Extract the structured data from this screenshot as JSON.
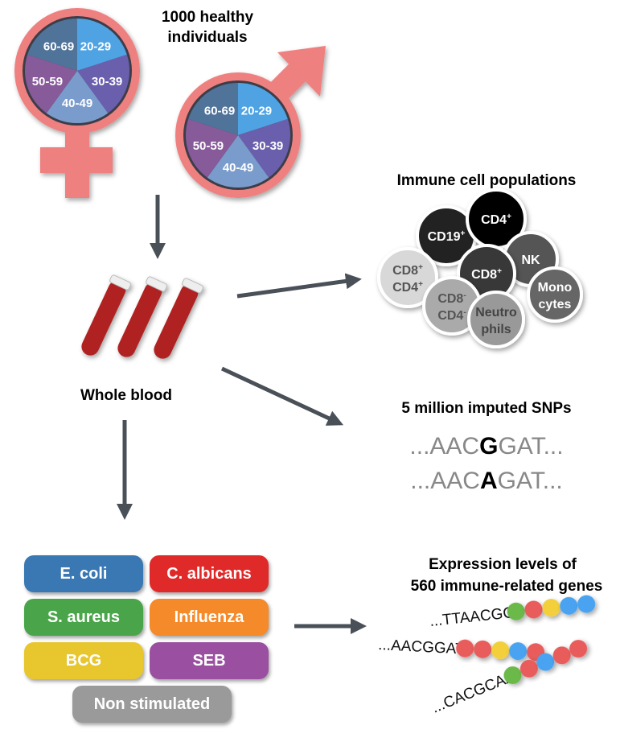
{
  "title": "1000 healthy individuals",
  "title_line1": "1000 healthy",
  "title_line2": "individuals",
  "age_groups": [
    "20-29",
    "30-39",
    "40-49",
    "50-59",
    "60-69"
  ],
  "age_colors": [
    "#4fa3e3",
    "#6a5fad",
    "#7a9ccc",
    "#875a9a",
    "#50739a"
  ],
  "symbol_color": "#ee8080",
  "whole_blood": "Whole blood",
  "immune_title": "Immune cell populations",
  "cells": [
    {
      "label": "CD19",
      "sup": "+",
      "color": "#222222",
      "text": "#ffffff"
    },
    {
      "label": "CD4",
      "sup": "+",
      "color": "#050505",
      "text": "#ffffff"
    },
    {
      "label": "NK",
      "sup": "",
      "color": "#555555",
      "text": "#ffffff"
    },
    {
      "label": "CD8",
      "sup": "+",
      "label2": "CD4",
      "sup2": "+",
      "color": "#d8d8d8",
      "text": "#555555"
    },
    {
      "label": "CD8",
      "sup": "+",
      "color": "#383838",
      "text": "#ffffff"
    },
    {
      "label": "CD8",
      "sup": "-",
      "label2": "CD4",
      "sup2": "-",
      "color": "#aaaaaa",
      "text": "#555555"
    },
    {
      "label": "Neutro",
      "sup": "",
      "label2": "phils",
      "color": "#999999",
      "text": "#444444"
    },
    {
      "label": "Mono",
      "sup": "",
      "label2": "cytes",
      "color": "#666666",
      "text": "#ffffff"
    }
  ],
  "snp_title": "5 million imputed SNPs",
  "snp_rows": [
    {
      "prefix": "...AAC",
      "variant": "G",
      "suffix": "GAT..."
    },
    {
      "prefix": "...AAC",
      "variant": "A",
      "suffix": "GAT..."
    }
  ],
  "stimuli": [
    {
      "label": "E. coli",
      "color": "#3a78b4"
    },
    {
      "label": "C. albicans",
      "color": "#e02a2a"
    },
    {
      "label": "S. aureus",
      "color": "#4aa54a"
    },
    {
      "label": "Influenza",
      "color": "#f58a2a"
    },
    {
      "label": "BCG",
      "color": "#e8c62e"
    },
    {
      "label": "SEB",
      "color": "#9a4fa0"
    },
    {
      "label": "Non stimulated",
      "color": "#9a9a9a"
    }
  ],
  "expr_title_line1": "Expression levels of",
  "expr_title_line2": "560 immune-related genes",
  "sequences": [
    "...TTAACGG",
    "...AACGGAT",
    "...CACGCAA"
  ],
  "bead_colors": {
    "green": "#6ab94a",
    "red": "#e85c5c",
    "yellow": "#f2cf3a",
    "blue": "#4aa3f0"
  }
}
